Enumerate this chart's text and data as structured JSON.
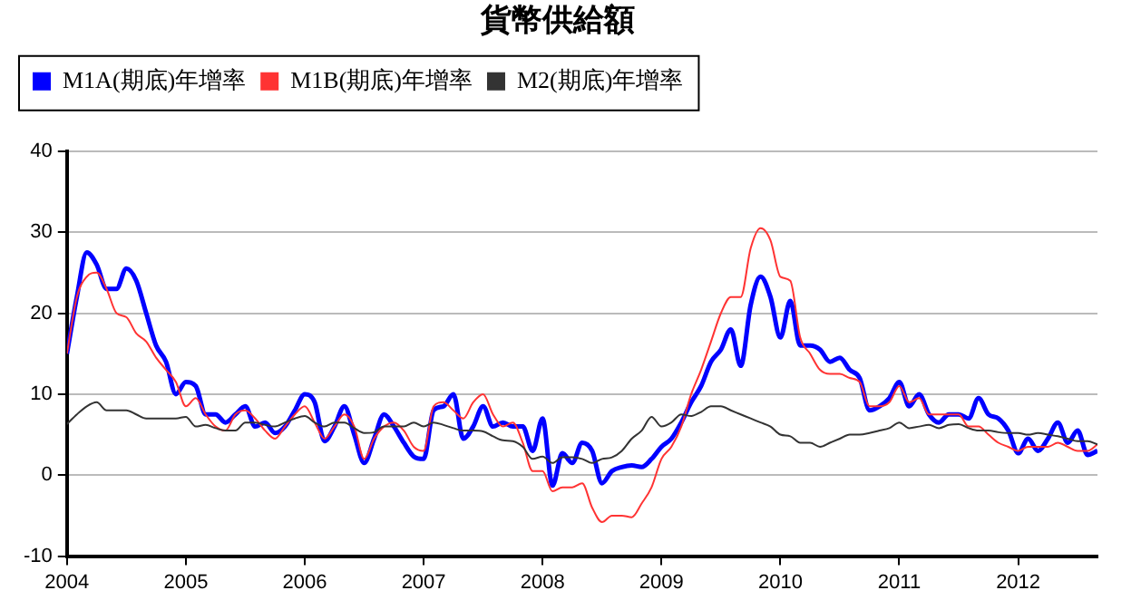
{
  "chart_data": {
    "type": "line",
    "title": "貨幣供給額",
    "x": [
      "2004-01",
      "2004-02",
      "2004-03",
      "2004-04",
      "2004-05",
      "2004-06",
      "2004-07",
      "2004-08",
      "2004-09",
      "2004-10",
      "2004-11",
      "2004-12",
      "2005-01",
      "2005-02",
      "2005-03",
      "2005-04",
      "2005-05",
      "2005-06",
      "2005-07",
      "2005-08",
      "2005-09",
      "2005-10",
      "2005-11",
      "2005-12",
      "2006-01",
      "2006-02",
      "2006-03",
      "2006-04",
      "2006-05",
      "2006-06",
      "2006-07",
      "2006-08",
      "2006-09",
      "2006-10",
      "2006-11",
      "2006-12",
      "2007-01",
      "2007-02",
      "2007-03",
      "2007-04",
      "2007-05",
      "2007-06",
      "2007-07",
      "2007-08",
      "2007-09",
      "2007-10",
      "2007-11",
      "2007-12",
      "2008-01",
      "2008-02",
      "2008-03",
      "2008-04",
      "2008-05",
      "2008-06",
      "2008-07",
      "2008-08",
      "2008-09",
      "2008-10",
      "2008-11",
      "2008-12",
      "2009-01",
      "2009-02",
      "2009-03",
      "2009-04",
      "2009-05",
      "2009-06",
      "2009-07",
      "2009-08",
      "2009-09",
      "2009-10",
      "2009-11",
      "2009-12",
      "2010-01",
      "2010-02",
      "2010-03",
      "2010-04",
      "2010-05",
      "2010-06",
      "2010-07",
      "2010-08",
      "2010-09",
      "2010-10",
      "2010-11",
      "2010-12",
      "2011-01",
      "2011-02",
      "2011-03",
      "2011-04",
      "2011-05",
      "2011-06",
      "2011-07",
      "2011-08",
      "2011-09",
      "2011-10",
      "2011-11",
      "2011-12",
      "2012-01",
      "2012-02",
      "2012-03",
      "2012-04",
      "2012-05",
      "2012-06",
      "2012-07",
      "2012-08",
      "2012-09"
    ],
    "series": [
      {
        "name": "M2(期底)年增率",
        "color": "#333333",
        "values": [
          6.3,
          7.5,
          8.5,
          9,
          8,
          8,
          8,
          7.5,
          7,
          7,
          7,
          7,
          7.2,
          6,
          6.2,
          5.8,
          5.5,
          5.5,
          6.5,
          6.5,
          6.2,
          6,
          6.5,
          7,
          7.3,
          6.5,
          6,
          6.5,
          6.5,
          5.8,
          5.2,
          5.3,
          6,
          6,
          6,
          6.5,
          6,
          6.5,
          6.2,
          5.8,
          5.5,
          5.5,
          5.4,
          4.8,
          4.3,
          4.2,
          3.5,
          2,
          2.3,
          1.5,
          2.2,
          2.2,
          2,
          1.5,
          2,
          2.2,
          3,
          4.5,
          5.5,
          7.2,
          6,
          6.5,
          7.5,
          7.3,
          7.8,
          8.5,
          8.5,
          8,
          7.5,
          7,
          6.5,
          6,
          5,
          4.8,
          4,
          4,
          3.5,
          4,
          4.5,
          5,
          5,
          5.2,
          5.5,
          5.8,
          6.5,
          5.8,
          6,
          6.2,
          5.8,
          6.2,
          6.3,
          5.8,
          5.5,
          5.5,
          5.3,
          5.2,
          5.2,
          5,
          5.2,
          5,
          4.8,
          4.5,
          4.2,
          4.2,
          3.8
        ]
      },
      {
        "name": "M1B(期底)年增率",
        "color": "#ff3333",
        "values": [
          15,
          22,
          24.5,
          25,
          23,
          20,
          19.5,
          17.5,
          16.5,
          14.5,
          13,
          11.5,
          8.5,
          9.5,
          7.5,
          6,
          5.5,
          7.5,
          8,
          7,
          5.5,
          4.5,
          6,
          7.5,
          8.5,
          6.5,
          4.5,
          6,
          7.5,
          6,
          2,
          4.5,
          6,
          6.5,
          5.5,
          3.5,
          3,
          8.5,
          9,
          8,
          7,
          9,
          10,
          7.5,
          6,
          6.5,
          4,
          0.5,
          0.5,
          -2,
          -1.5,
          -1.5,
          -1,
          -4,
          -5.8,
          -5,
          -5,
          -5.2,
          -3.5,
          -1.5,
          2,
          3.5,
          6,
          10,
          13,
          16.5,
          20,
          22,
          22,
          28,
          30.5,
          29,
          24.5,
          24,
          17,
          15,
          13,
          12.5,
          12.5,
          12,
          11.5,
          8.5,
          8.5,
          9,
          11,
          9,
          9.5,
          7.5,
          7.5,
          7.5,
          7.5,
          6,
          6,
          5,
          4,
          3.5,
          3,
          3.5,
          3.5,
          3.5,
          4,
          3.5,
          3,
          3,
          3.8
        ]
      },
      {
        "name": "M1A(期底)年增率",
        "color": "#0000ff",
        "values": [
          15,
          22,
          27.5,
          26,
          23,
          23,
          25.5,
          24,
          20,
          16,
          14,
          10,
          11.5,
          11,
          7.5,
          7.5,
          6.5,
          7.5,
          8.5,
          6,
          6.5,
          5.2,
          6,
          8,
          10,
          9,
          4.2,
          6,
          8.5,
          5,
          1.5,
          4.5,
          7.5,
          6,
          4,
          2.3,
          2,
          8,
          8.5,
          10,
          4.5,
          6,
          8.5,
          6,
          6.5,
          6,
          6,
          3,
          7,
          -1.3,
          2.7,
          1.5,
          4,
          3,
          -1,
          0.5,
          1,
          1.2,
          1,
          2,
          3.5,
          4.5,
          6.5,
          9,
          11,
          14,
          15.5,
          18,
          13.5,
          21,
          24.5,
          22,
          17,
          21.5,
          16,
          16,
          15.5,
          14,
          14.5,
          13,
          12,
          8,
          8.5,
          9.5,
          11.5,
          8.5,
          10,
          7.5,
          6.5,
          7.5,
          7.5,
          7,
          9.5,
          7.5,
          7,
          5.5,
          2.7,
          4.5,
          3,
          4.5,
          6.5,
          4,
          5.5,
          2.5,
          3
        ]
      }
    ],
    "xlim": [
      "2004-01",
      "2012-09"
    ],
    "xticks": [
      "2004",
      "2005",
      "2006",
      "2007",
      "2008",
      "2009",
      "2010",
      "2011",
      "2012"
    ],
    "ylim": [
      -10,
      40
    ],
    "yticks": [
      -10,
      0,
      10,
      20,
      30,
      40
    ],
    "grid": "y",
    "legend": "top left",
    "marker": "none",
    "line_style": "solid"
  }
}
